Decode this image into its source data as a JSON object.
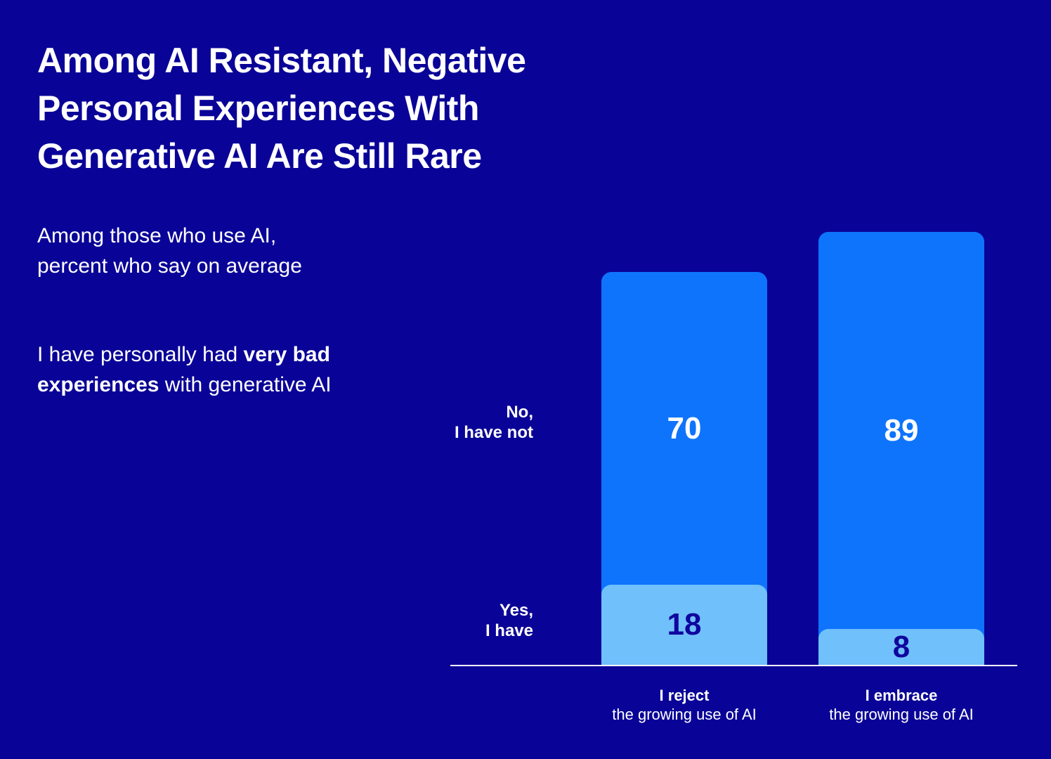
{
  "page": {
    "background_color": "#0A0397",
    "text_color": "#FFFFFF"
  },
  "chart_data": {
    "type": "bar",
    "stacked": true,
    "orientation": "vertical",
    "title": "Among AI Resistant, Negative Personal Experiences With Generative AI Are Still Rare",
    "title_lines": [
      "Among AI Resistant, Negative",
      "Personal Experiences With",
      "Generative AI Are Still Rare"
    ],
    "subtitle": "Among those who use AI, percent who say on average",
    "subtitle_lines": [
      "Among those who use AI,",
      "percent who say on average"
    ],
    "question": "I have personally had very bad experiences with generative AI",
    "question_lines": [
      {
        "normal_prefix": "I have personally had ",
        "bold_suffix": "very bad"
      },
      {
        "bold_prefix": "experiences",
        "normal_suffix": " with generative AI"
      }
    ],
    "unit": "percent",
    "categories": [
      {
        "emphasis": "I reject",
        "rest": "the growing use of AI"
      },
      {
        "emphasis": "I embrace",
        "rest": "the growing use of AI"
      }
    ],
    "series": [
      {
        "name": "No, I have not",
        "name_lines": [
          "No,",
          "I have not"
        ],
        "values": [
          70,
          89
        ],
        "color": "#0E74FC",
        "value_color": "#FFFFFF"
      },
      {
        "name": "Yes, I have",
        "name_lines": [
          "Yes,",
          "I have"
        ],
        "values": [
          18,
          8
        ],
        "color": "#70C0FB",
        "value_color": "#10069F"
      }
    ],
    "ylim": [
      0,
      100
    ],
    "grid": false,
    "axis_line_color": "#FFFFFF",
    "legend_position": "row-labels-left-of-bars"
  }
}
